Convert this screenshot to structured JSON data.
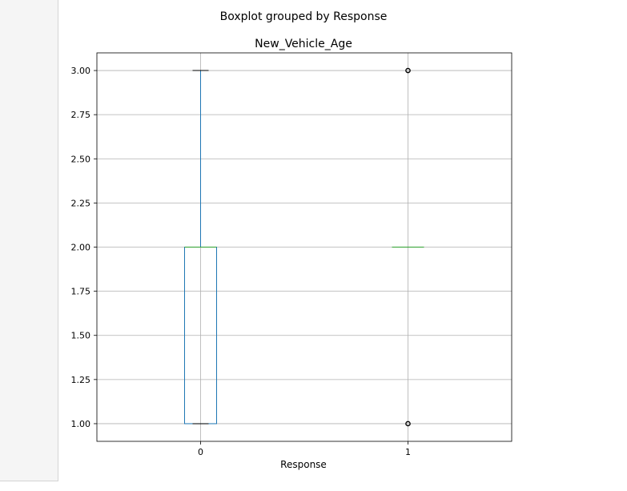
{
  "suptitle": "Boxplot grouped by Response",
  "chart_data": {
    "type": "box",
    "title": "New_Vehicle_Age",
    "xlabel": "Response",
    "ylabel": "",
    "ylim": [
      0.9,
      3.1
    ],
    "yticks": [
      "1.00",
      "1.25",
      "1.50",
      "1.75",
      "2.00",
      "2.25",
      "2.50",
      "2.75",
      "3.00"
    ],
    "grid": true,
    "categories": [
      "0",
      "1"
    ],
    "boxes": [
      {
        "category": "0",
        "whislo": 1.0,
        "q1": 1.0,
        "med": 2.0,
        "q3": 2.0,
        "whishi": 3.0,
        "fliers": []
      },
      {
        "category": "1",
        "whislo": 2.0,
        "q1": 2.0,
        "med": 2.0,
        "q3": 2.0,
        "whishi": 2.0,
        "fliers": [
          1.0,
          3.0
        ]
      }
    ],
    "colors": {
      "box": "#1f77b4",
      "median": "#2ca02c",
      "whisker": "#1f77b4",
      "cap": "#000000",
      "flier": "#000000",
      "grid": "#b0b0b0"
    }
  }
}
